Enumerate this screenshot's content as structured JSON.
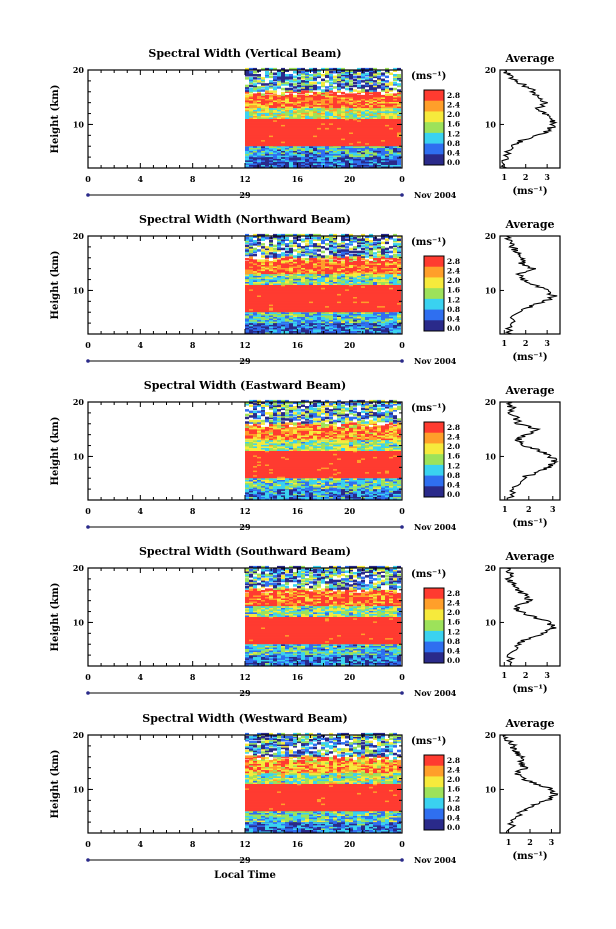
{
  "figure": {
    "date_label": "Nov 2004",
    "day_label": "29",
    "xlabel": "Local Time",
    "ylabel": "Height (km)",
    "unit": "(ms⁻¹)",
    "average_title": "Average",
    "colorbar_ticks": [
      "2.8",
      "2.4",
      "2.0",
      "1.6",
      "1.2",
      "0.8",
      "0.4",
      "0.0"
    ],
    "colors": {
      "red": "#ff3b30",
      "orange": "#ff9f2a",
      "yellow": "#f6ea3c",
      "green": "#9de25a",
      "cyan": "#3ad2f0",
      "blue": "#2f6ff0",
      "navy": "#2a2a8a"
    }
  },
  "chart_data": [
    {
      "type": "heatmap",
      "title": "Spectral Width (Vertical Beam)",
      "x_ticks": [
        "0",
        "4",
        "8",
        "12",
        "16",
        "20",
        "0"
      ],
      "y_ticks": [
        "20",
        "10"
      ],
      "xlim_hours": [
        0,
        24
      ],
      "ylim_km": [
        2,
        20
      ],
      "data_start_hour": 12,
      "colorbar_range": [
        0.0,
        3.0
      ],
      "bands": [
        {
          "from_km": 2,
          "to_km": 4,
          "value": 0.5
        },
        {
          "from_km": 4,
          "to_km": 6,
          "value": 1.0
        },
        {
          "from_km": 6,
          "to_km": 11,
          "value": 3.0
        },
        {
          "from_km": 11,
          "to_km": 13,
          "value": 1.6
        },
        {
          "from_km": 13,
          "to_km": 16,
          "value": 2.6
        },
        {
          "from_km": 16,
          "to_km": 20,
          "value": 0.8
        }
      ],
      "average": {
        "x_ticks": [
          "1",
          "2",
          "3"
        ],
        "xlim": [
          0.8,
          3.6
        ],
        "y_ticks": [
          "20",
          "10"
        ],
        "height_km": [
          2,
          4,
          6,
          7,
          8,
          9,
          10,
          11,
          12,
          13,
          14,
          15,
          16,
          17,
          18,
          19,
          20
        ],
        "value_ms": [
          1.0,
          1.1,
          1.3,
          1.8,
          2.6,
          3.1,
          3.3,
          3.2,
          2.9,
          2.6,
          2.9,
          2.5,
          2.4,
          2.0,
          1.6,
          1.2,
          1.0
        ]
      }
    },
    {
      "type": "heatmap",
      "title": "Spectral Width (Northward Beam)",
      "x_ticks": [
        "0",
        "4",
        "8",
        "12",
        "16",
        "20",
        "0"
      ],
      "y_ticks": [
        "20",
        "10"
      ],
      "xlim_hours": [
        0,
        24
      ],
      "ylim_km": [
        2,
        20
      ],
      "data_start_hour": 12,
      "colorbar_range": [
        0.0,
        3.0
      ],
      "bands": [
        {
          "from_km": 2,
          "to_km": 4,
          "value": 0.6
        },
        {
          "from_km": 4,
          "to_km": 6,
          "value": 1.1
        },
        {
          "from_km": 6,
          "to_km": 11,
          "value": 3.0
        },
        {
          "from_km": 11,
          "to_km": 13,
          "value": 1.4
        },
        {
          "from_km": 13,
          "to_km": 16,
          "value": 2.6
        },
        {
          "from_km": 16,
          "to_km": 20,
          "value": 0.9
        }
      ],
      "average": {
        "x_ticks": [
          "1",
          "2",
          "3"
        ],
        "xlim": [
          0.8,
          3.6
        ],
        "y_ticks": [
          "20",
          "10"
        ],
        "height_km": [
          2,
          4,
          6,
          7,
          8,
          9,
          10,
          11,
          12,
          13,
          14,
          15,
          16,
          17,
          18,
          19,
          20
        ],
        "value_ms": [
          1.2,
          1.3,
          1.6,
          2.2,
          2.9,
          3.3,
          3.0,
          2.4,
          1.9,
          1.6,
          2.3,
          1.8,
          1.9,
          1.6,
          1.4,
          1.3,
          1.1
        ]
      }
    },
    {
      "type": "heatmap",
      "title": "Spectral Width (Eastward Beam)",
      "x_ticks": [
        "0",
        "4",
        "8",
        "12",
        "16",
        "20",
        "0"
      ],
      "y_ticks": [
        "20",
        "10"
      ],
      "xlim_hours": [
        0,
        24
      ],
      "ylim_km": [
        2,
        20
      ],
      "data_start_hour": 12,
      "colorbar_range": [
        0.0,
        3.0
      ],
      "bands": [
        {
          "from_km": 2,
          "to_km": 4,
          "value": 0.7
        },
        {
          "from_km": 4,
          "to_km": 6,
          "value": 1.2
        },
        {
          "from_km": 6,
          "to_km": 11,
          "value": 2.9
        },
        {
          "from_km": 11,
          "to_km": 13,
          "value": 1.5
        },
        {
          "from_km": 13,
          "to_km": 16,
          "value": 2.4
        },
        {
          "from_km": 16,
          "to_km": 20,
          "value": 1.0
        }
      ],
      "average": {
        "x_ticks": [
          "1",
          "2",
          "3"
        ],
        "xlim": [
          0.8,
          3.3
        ],
        "y_ticks": [
          "20",
          "10"
        ],
        "height_km": [
          2,
          4,
          6,
          7,
          8,
          9,
          10,
          11,
          12,
          13,
          14,
          15,
          16,
          17,
          18,
          19,
          20
        ],
        "value_ms": [
          1.2,
          1.4,
          1.7,
          2.3,
          2.8,
          3.1,
          2.9,
          2.5,
          1.8,
          1.5,
          1.9,
          2.3,
          1.6,
          1.5,
          1.2,
          1.3,
          1.1
        ]
      }
    },
    {
      "type": "heatmap",
      "title": "Spectral Width (Southward Beam)",
      "x_ticks": [
        "0",
        "4",
        "8",
        "12",
        "16",
        "20",
        "0"
      ],
      "y_ticks": [
        "20",
        "10"
      ],
      "xlim_hours": [
        0,
        24
      ],
      "ylim_km": [
        2,
        20
      ],
      "data_start_hour": 12,
      "colorbar_range": [
        0.0,
        3.0
      ],
      "bands": [
        {
          "from_km": 2,
          "to_km": 4,
          "value": 0.6
        },
        {
          "from_km": 4,
          "to_km": 6,
          "value": 1.1
        },
        {
          "from_km": 6,
          "to_km": 11,
          "value": 3.0
        },
        {
          "from_km": 11,
          "to_km": 13,
          "value": 1.4
        },
        {
          "from_km": 13,
          "to_km": 16,
          "value": 2.7
        },
        {
          "from_km": 16,
          "to_km": 20,
          "value": 0.9
        }
      ],
      "average": {
        "x_ticks": [
          "1",
          "2",
          "3"
        ],
        "xlim": [
          0.8,
          3.6
        ],
        "y_ticks": [
          "20",
          "10"
        ],
        "height_km": [
          2,
          4,
          6,
          7,
          8,
          9,
          10,
          11,
          12,
          13,
          14,
          15,
          16,
          17,
          18,
          19,
          20
        ],
        "value_ms": [
          1.2,
          1.3,
          1.6,
          2.1,
          2.9,
          3.3,
          3.1,
          2.4,
          1.7,
          1.5,
          2.2,
          2.0,
          1.6,
          1.4,
          1.2,
          1.3,
          1.1
        ]
      }
    },
    {
      "type": "heatmap",
      "title": "Spectral Width (Westward Beam)",
      "x_ticks": [
        "0",
        "4",
        "8",
        "12",
        "16",
        "20",
        "0"
      ],
      "y_ticks": [
        "20",
        "10"
      ],
      "xlim_hours": [
        0,
        24
      ],
      "ylim_km": [
        2,
        20
      ],
      "data_start_hour": 12,
      "colorbar_range": [
        0.0,
        3.0
      ],
      "bands": [
        {
          "from_km": 2,
          "to_km": 4,
          "value": 0.6
        },
        {
          "from_km": 4,
          "to_km": 6,
          "value": 1.2
        },
        {
          "from_km": 6,
          "to_km": 11,
          "value": 3.0
        },
        {
          "from_km": 11,
          "to_km": 13,
          "value": 1.5
        },
        {
          "from_km": 13,
          "to_km": 16,
          "value": 2.3
        },
        {
          "from_km": 16,
          "to_km": 20,
          "value": 0.9
        }
      ],
      "average": {
        "x_ticks": [
          "1",
          "2",
          "3"
        ],
        "xlim": [
          0.6,
          3.4
        ],
        "y_ticks": [
          "20",
          "10"
        ],
        "height_km": [
          2,
          4,
          6,
          7,
          8,
          9,
          10,
          11,
          12,
          13,
          14,
          15,
          16,
          17,
          18,
          19,
          20
        ],
        "value_ms": [
          1.0,
          1.2,
          1.6,
          2.1,
          2.8,
          3.2,
          3.0,
          2.3,
          1.7,
          1.4,
          1.8,
          1.5,
          1.6,
          1.3,
          1.2,
          1.0,
          0.9
        ]
      }
    }
  ]
}
